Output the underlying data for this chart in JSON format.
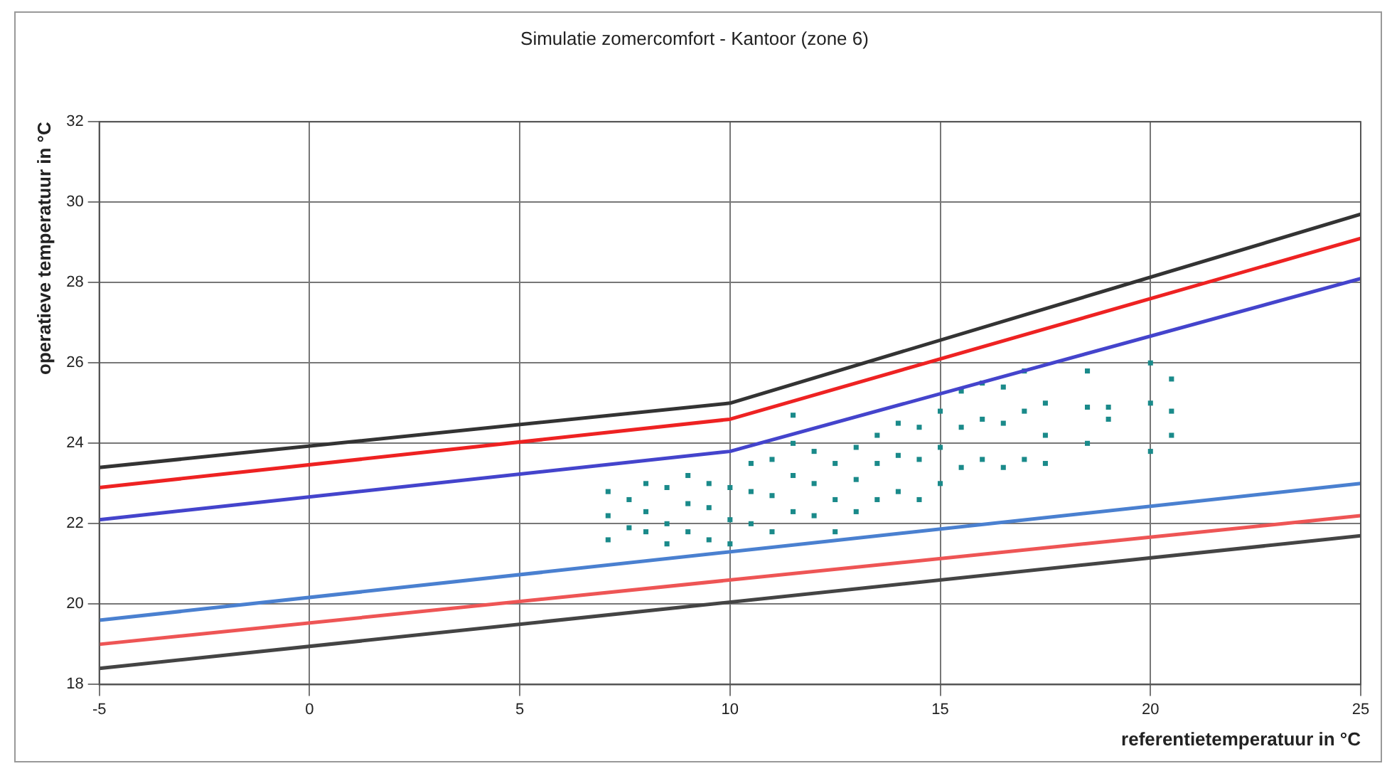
{
  "chart_data": {
    "type": "line",
    "title": "Simulatie zomercomfort - Kantoor (zone 6)",
    "xlabel": "referentietemperatuur in °C",
    "ylabel": "operatieve temperatuur in °C",
    "xlim": [
      -5,
      25
    ],
    "xticks": [
      -5,
      0,
      5,
      10,
      15,
      20,
      25
    ],
    "ylim": [
      18,
      32
    ],
    "yticks": [
      18,
      20,
      22,
      24,
      26,
      28,
      30,
      32
    ],
    "grid": true,
    "legend": false,
    "series": [
      {
        "type": "line",
        "marker": "none",
        "line_style": "solid",
        "color": "#333333",
        "x": [
          -5,
          10,
          25
        ],
        "values": [
          23.4,
          25.0,
          29.7
        ]
      },
      {
        "type": "line",
        "marker": "none",
        "line_style": "solid",
        "color": "#ee2222",
        "x": [
          -5,
          10,
          25
        ],
        "values": [
          22.9,
          24.6,
          29.1
        ]
      },
      {
        "type": "line",
        "marker": "none",
        "line_style": "solid",
        "color": "#4444cc",
        "x": [
          -5,
          10,
          25
        ],
        "values": [
          22.1,
          23.8,
          28.1
        ]
      },
      {
        "type": "line",
        "marker": "none",
        "line_style": "solid",
        "color": "#4a80d0",
        "x": [
          -5,
          25
        ],
        "values": [
          19.6,
          23.0
        ]
      },
      {
        "type": "line",
        "marker": "none",
        "line_style": "solid",
        "color": "#ee5555",
        "x": [
          -5,
          25
        ],
        "values": [
          19.0,
          22.2
        ]
      },
      {
        "type": "line",
        "marker": "none",
        "line_style": "solid",
        "color": "#444444",
        "x": [
          -5,
          25
        ],
        "values": [
          18.4,
          21.7
        ]
      },
      {
        "type": "scatter",
        "marker": "square",
        "color": "#1a8a8a",
        "x": [
          7.1,
          7.1,
          7.1,
          7.6,
          7.6,
          8.0,
          8.0,
          8.0,
          8.5,
          8.5,
          8.5,
          9.0,
          9.0,
          9.0,
          9.5,
          9.5,
          9.5,
          10.0,
          10.0,
          10.0,
          10.5,
          10.5,
          10.5,
          11.0,
          11.0,
          11.0,
          11.5,
          11.5,
          11.5,
          11.5,
          12.0,
          12.0,
          12.0,
          12.5,
          12.5,
          12.5,
          13.0,
          13.0,
          13.0,
          13.5,
          13.5,
          13.5,
          14.0,
          14.0,
          14.0,
          14.5,
          14.5,
          14.5,
          15.0,
          15.0,
          15.0,
          15.5,
          15.5,
          15.5,
          16.0,
          16.0,
          16.0,
          16.5,
          16.5,
          16.5,
          17.0,
          17.0,
          17.0,
          17.5,
          17.5,
          17.5,
          18.5,
          18.5,
          18.5,
          19.0,
          19.0,
          20.0,
          20.0,
          20.0,
          20.5,
          20.5,
          20.5
        ],
        "values": [
          22.8,
          22.2,
          21.6,
          22.6,
          21.9,
          23.0,
          22.3,
          21.8,
          22.9,
          22.0,
          21.5,
          23.2,
          22.5,
          21.8,
          23.0,
          22.4,
          21.6,
          22.9,
          22.1,
          21.5,
          23.5,
          22.8,
          22.0,
          23.6,
          22.7,
          21.8,
          24.7,
          24.0,
          23.2,
          22.3,
          23.8,
          23.0,
          22.2,
          23.5,
          22.6,
          21.8,
          23.9,
          23.1,
          22.3,
          24.2,
          23.5,
          22.6,
          24.5,
          23.7,
          22.8,
          24.4,
          23.6,
          22.6,
          24.8,
          23.9,
          23.0,
          25.3,
          24.4,
          23.4,
          25.5,
          24.6,
          23.6,
          25.4,
          24.5,
          23.4,
          25.8,
          24.8,
          23.6,
          25.0,
          24.2,
          23.5,
          25.8,
          24.9,
          24.0,
          24.9,
          24.6,
          26.0,
          25.0,
          23.8,
          25.6,
          24.8,
          24.2
        ]
      }
    ]
  }
}
